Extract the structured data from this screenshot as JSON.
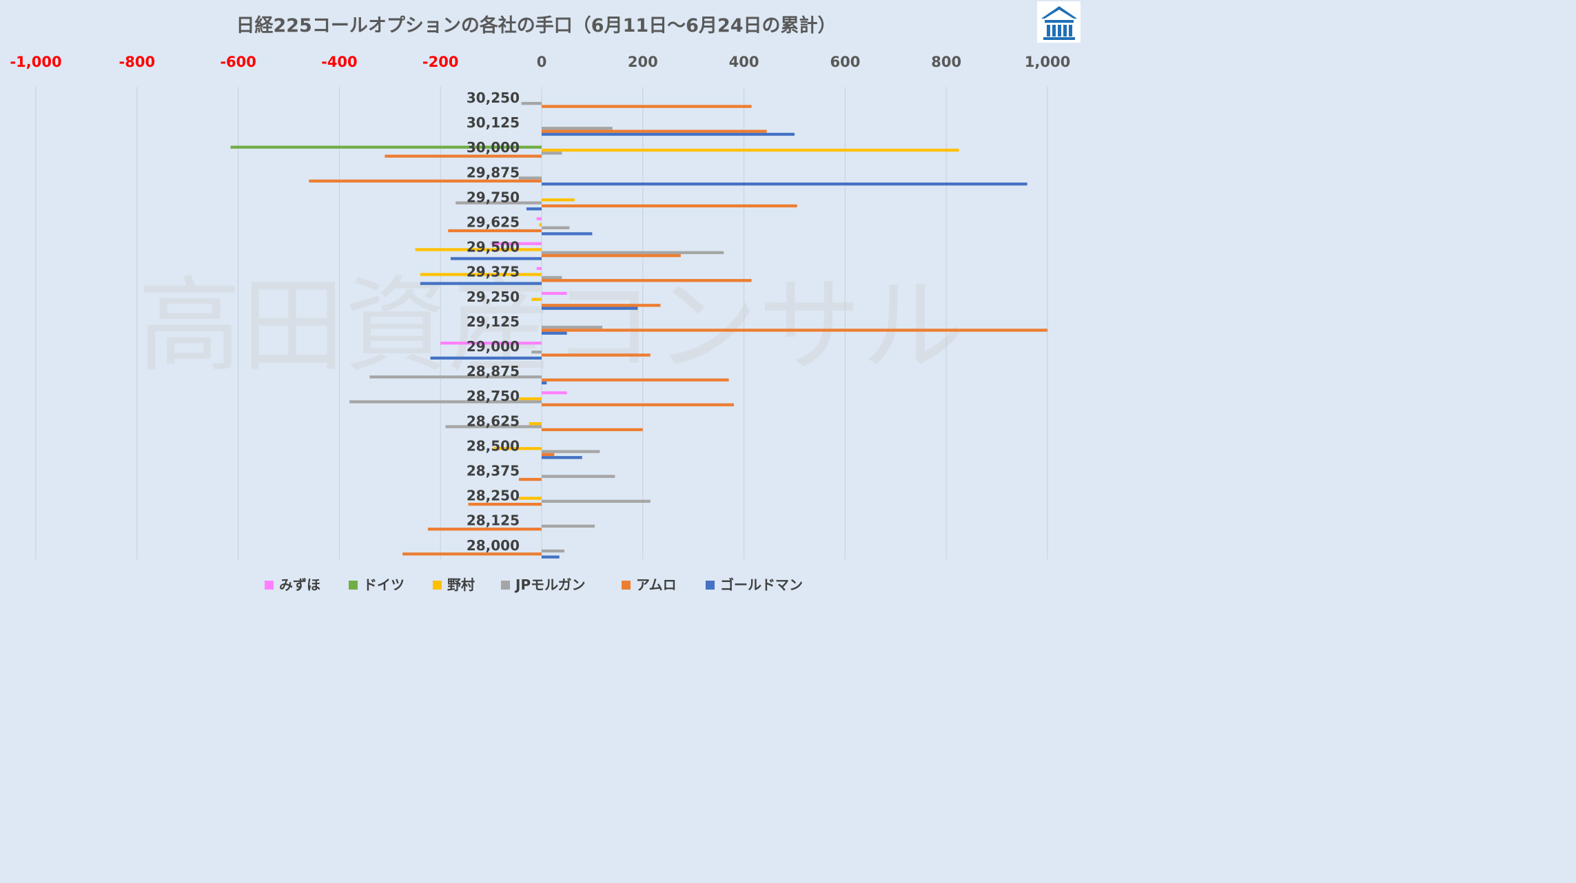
{
  "colors": {
    "background": "#dde8f4",
    "title": "#595959",
    "tick_negative": "#ff0000",
    "tick_positive": "#595959",
    "grid": "#c8d0d9",
    "category": "#404040"
  },
  "logo_icon": "pillar-building-logo-icon",
  "watermark": "高田資産コンサル",
  "chart_data": {
    "type": "bar",
    "orientation": "horizontal",
    "title": "日経225コールオプションの各社の手口（6月11日～6月24日の累計）",
    "xlabel": "",
    "ylabel": "",
    "xlim": [
      -1000,
      1000
    ],
    "xticks": [
      -1000,
      -800,
      -600,
      -400,
      -200,
      0,
      200,
      400,
      600,
      800,
      1000
    ],
    "xtick_labels": [
      "-1,000",
      "-800",
      "-600",
      "-400",
      "-200",
      "0",
      "200",
      "400",
      "600",
      "800",
      "1,000"
    ],
    "grid": true,
    "legend_position": "bottom",
    "categories": [
      "30,250",
      "30,125",
      "30,000",
      "29,875",
      "29,750",
      "29,625",
      "29,500",
      "29,375",
      "29,250",
      "29,125",
      "29,000",
      "28,875",
      "28,750",
      "28,625",
      "28,500",
      "28,375",
      "28,250",
      "28,125",
      "28,000"
    ],
    "series": [
      {
        "name": "みずほ",
        "color": "#ff80ff",
        "values": [
          0,
          0,
          0,
          0,
          0,
          -10,
          -100,
          -10,
          50,
          0,
          -200,
          0,
          50,
          0,
          0,
          0,
          0,
          0,
          0
        ]
      },
      {
        "name": "ドイツ",
        "color": "#70ad47",
        "values": [
          0,
          0,
          -615,
          0,
          0,
          0,
          0,
          0,
          0,
          0,
          0,
          0,
          0,
          0,
          0,
          0,
          0,
          0,
          0
        ]
      },
      {
        "name": "野村",
        "color": "#ffc000",
        "values": [
          0,
          0,
          825,
          0,
          65,
          -5,
          -250,
          -240,
          -20,
          0,
          0,
          0,
          -45,
          -25,
          -95,
          0,
          -45,
          0,
          0
        ]
      },
      {
        "name": "JPモルガン",
        "color": "#a5a5a5",
        "values": [
          -40,
          140,
          40,
          -45,
          -170,
          55,
          360,
          40,
          0,
          120,
          -20,
          -340,
          -380,
          -190,
          115,
          145,
          215,
          105,
          45
        ]
      },
      {
        "name": "アムロ",
        "color": "#ed7d31",
        "values": [
          415,
          445,
          -310,
          -460,
          505,
          -185,
          275,
          415,
          235,
          1000,
          215,
          370,
          380,
          200,
          25,
          -45,
          -145,
          -225,
          -275
        ]
      },
      {
        "name": "ゴールドマン",
        "color": "#4472c4",
        "values": [
          0,
          500,
          0,
          960,
          -30,
          100,
          -180,
          -240,
          190,
          50,
          -220,
          10,
          0,
          0,
          80,
          0,
          0,
          0,
          35
        ]
      }
    ]
  }
}
